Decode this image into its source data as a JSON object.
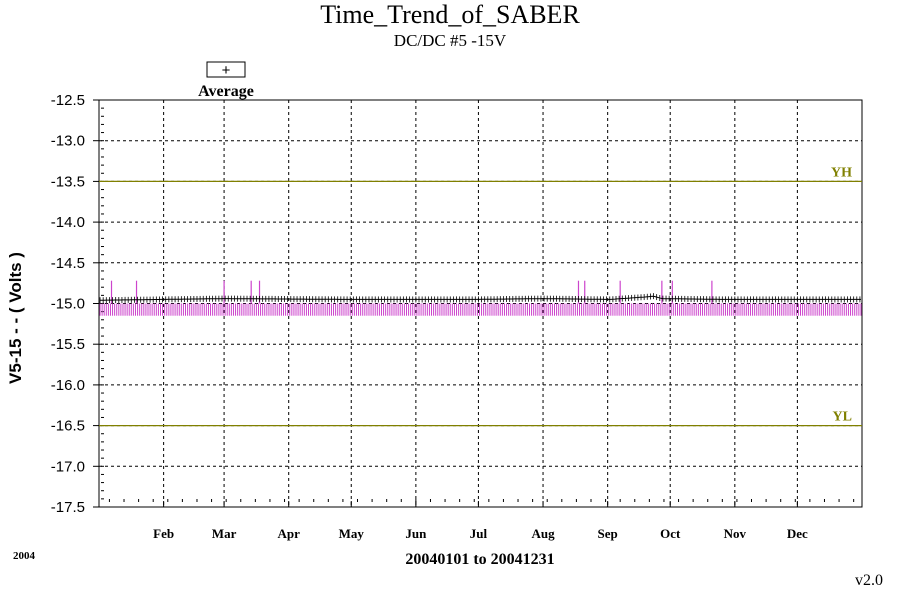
{
  "chart_data": {
    "type": "line",
    "title": "Time_Trend_of_SABER",
    "subtitle": "DC/DC #5 -15V",
    "ylabel": "V5-15  - - ( Volts )",
    "xlabel": "20040101 to 20041231",
    "year_label": "2004",
    "version": "v2.0",
    "ylim": [
      -17.5,
      -12.5
    ],
    "y_ticks": [
      "-12.5",
      "-13.0",
      "-13.5",
      "-14.0",
      "-14.5",
      "-15.0",
      "-15.5",
      "-16.0",
      "-16.5",
      "-17.0",
      "-17.5"
    ],
    "x_ticks": [
      "Feb",
      "Mar",
      "Apr",
      "May",
      "Jun",
      "Jul",
      "Aug",
      "Sep",
      "Oct",
      "Nov",
      "Dec"
    ],
    "x_tick_days": [
      31,
      60,
      91,
      121,
      152,
      182,
      213,
      244,
      274,
      305,
      335
    ],
    "xlim_days": [
      0,
      366
    ],
    "grid": true,
    "legend": {
      "symbol": "+",
      "label": "Average",
      "placement": "top-left"
    },
    "reference_lines": [
      {
        "label": "YH",
        "value": -13.5,
        "color": "#808000"
      },
      {
        "label": "YL",
        "value": -16.5,
        "color": "#808000"
      }
    ],
    "series": [
      {
        "name": "Average",
        "color": "#000000",
        "baseline": -14.95,
        "points": [
          [
            0,
            -14.96
          ],
          [
            60,
            -14.94
          ],
          [
            120,
            -14.95
          ],
          [
            180,
            -14.95
          ],
          [
            213,
            -14.94
          ],
          [
            245,
            -14.95
          ],
          [
            262,
            -14.92
          ],
          [
            266,
            -14.91
          ],
          [
            270,
            -14.94
          ],
          [
            300,
            -14.95
          ],
          [
            366,
            -14.95
          ]
        ]
      },
      {
        "color": "#cc44cc",
        "low": -15.15,
        "high": -15.0,
        "spike_days": [
          6,
          18,
          60,
          73,
          77,
          230,
          233,
          250,
          270,
          275,
          294
        ],
        "spike_value": -14.72
      }
    ]
  }
}
